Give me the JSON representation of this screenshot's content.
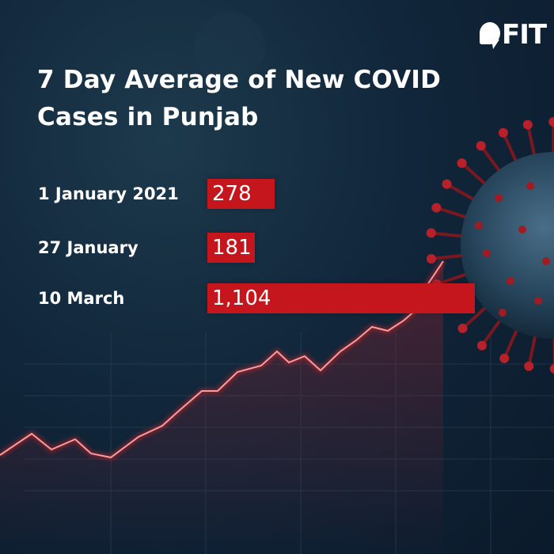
{
  "brand": {
    "logo_text": "FIT"
  },
  "colors": {
    "bar": "#c4161c",
    "background": "#11263a",
    "text": "#ffffff",
    "accent_red": "#e0262c"
  },
  "chart_data": {
    "type": "bar",
    "orientation": "horizontal",
    "title": "7 Day Average of New COVID Cases in Punjab",
    "title_lines": [
      "7 Day Average of New COVID",
      "Cases in Punjab"
    ],
    "categories": [
      "1 January 2021",
      "27 January",
      "10 March"
    ],
    "values": [
      278,
      181,
      1104
    ],
    "value_labels": [
      "278",
      "181",
      "1,104"
    ],
    "xlim": [
      0,
      1104
    ],
    "xlabel": "",
    "ylabel": "",
    "grid": false,
    "legend": "none"
  }
}
